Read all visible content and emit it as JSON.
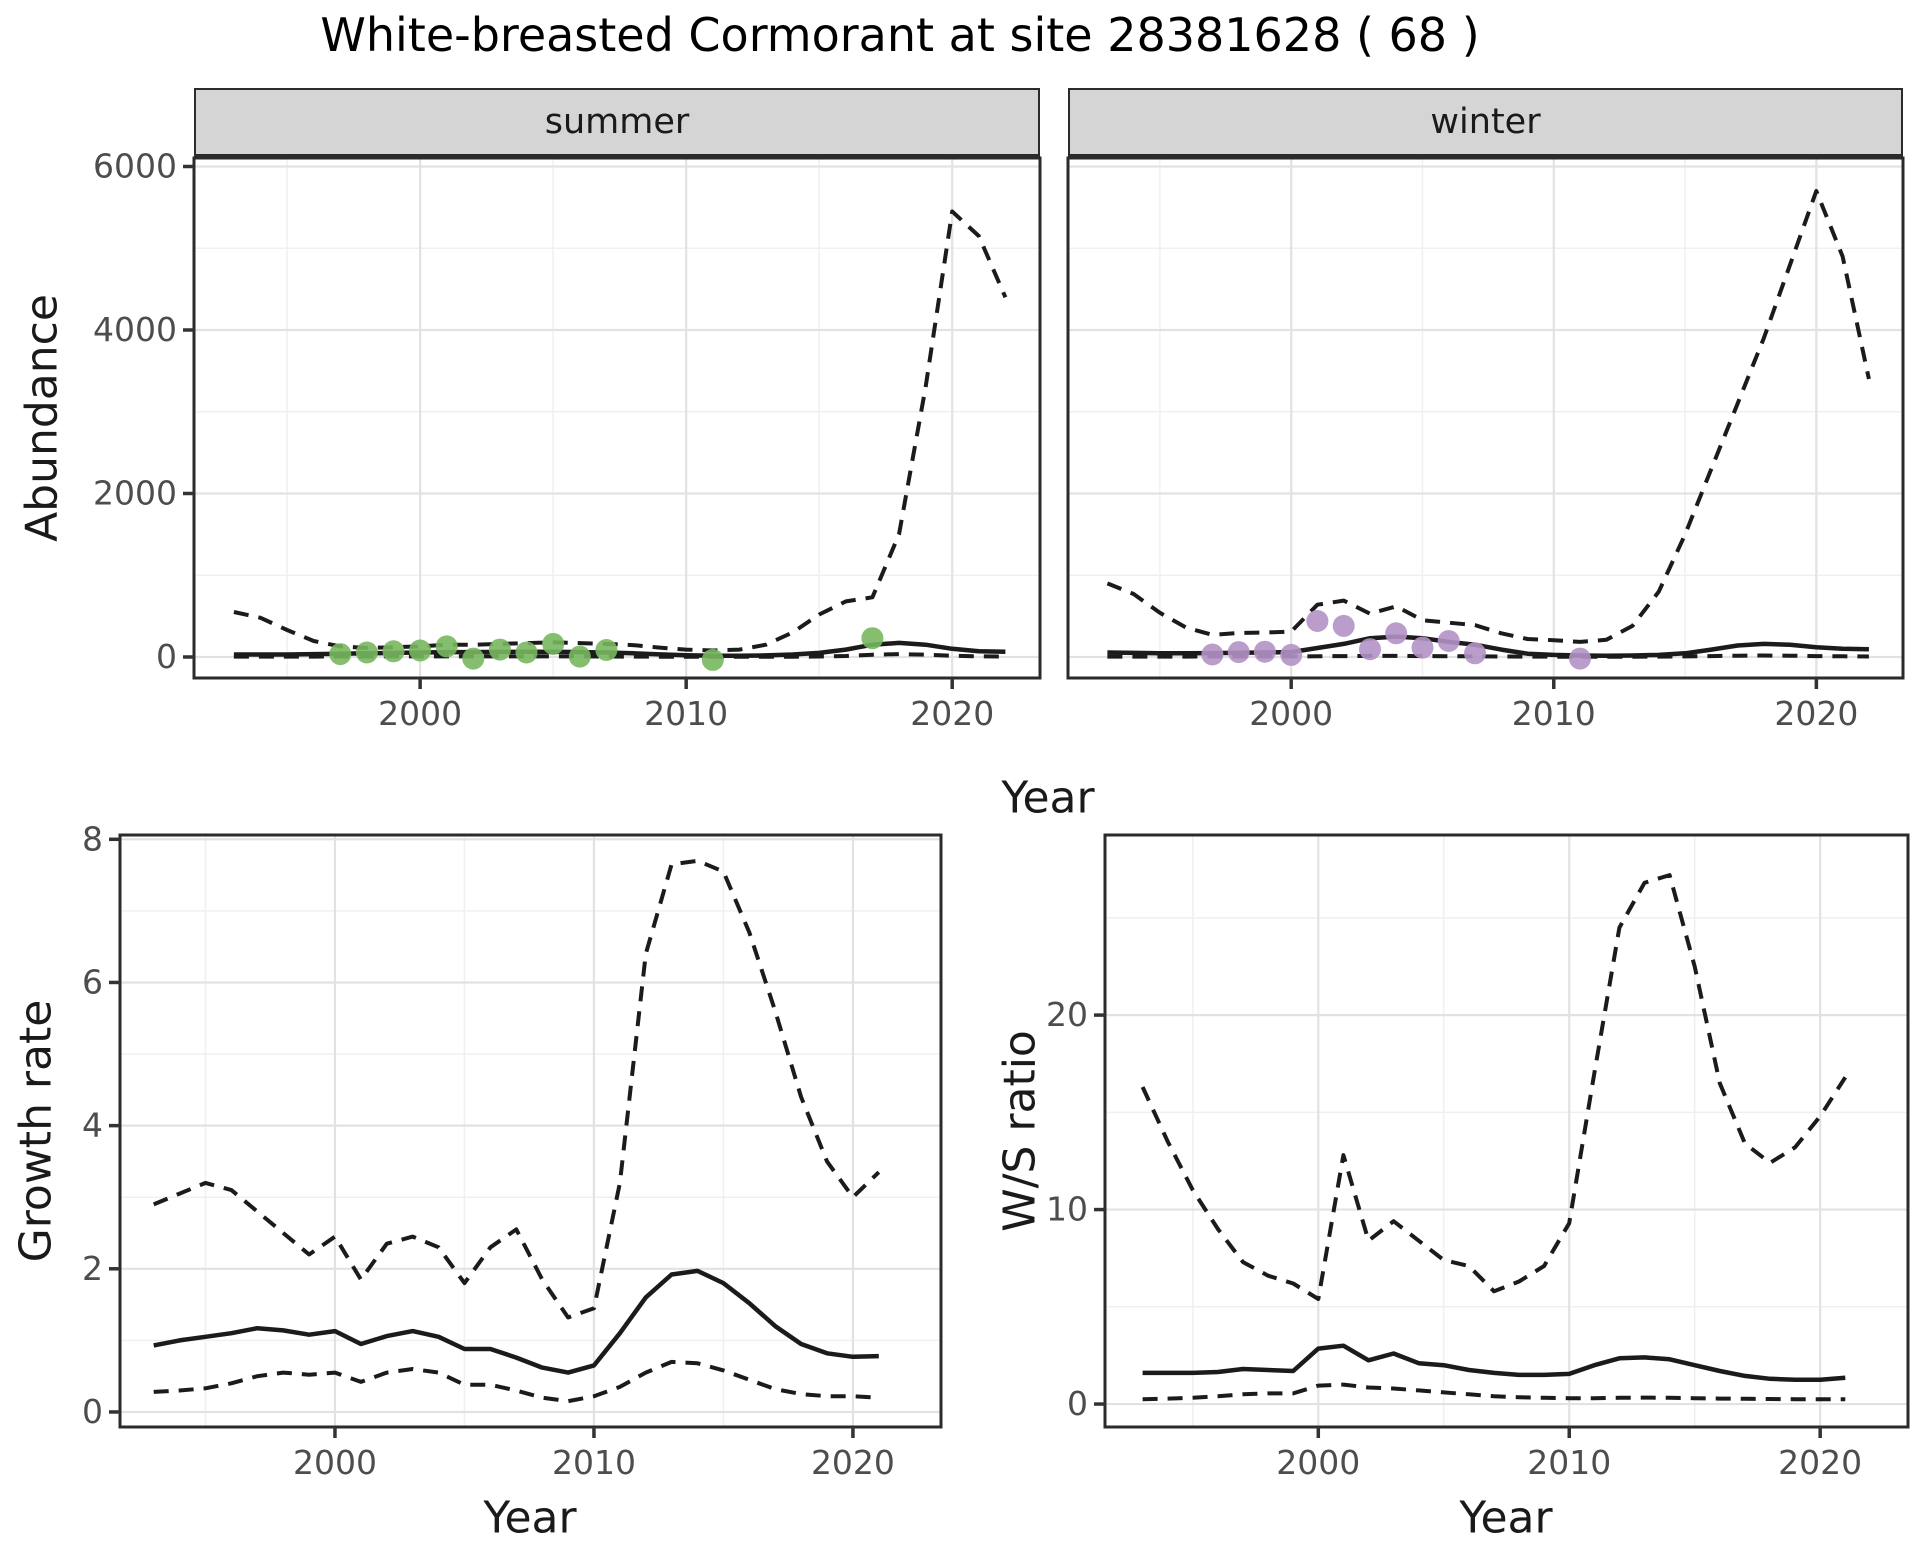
{
  "title": "White-breasted Cormorant at site 28381628 ( 68 )",
  "colors": {
    "line": "#1b1b1b",
    "summer_point": "#78b75e",
    "winter_point": "#b492c6",
    "strip_bg": "#d5d5d5",
    "panel_border": "#2b2b2b",
    "grid_major": "#e2e2e2",
    "grid_minor": "#f0f0f0",
    "tick_text": "#4d4d4d"
  },
  "chart_data": [
    {
      "id": "abundance-summer",
      "type": "line",
      "facet": "summer",
      "ylabel": "Abundance",
      "xlabel": "Year",
      "xlim": [
        1991.5,
        2023.3
      ],
      "ylim": [
        -257,
        6104
      ],
      "x_major": [
        2000,
        2010,
        2020
      ],
      "x_minor": [
        1995,
        2005,
        2015
      ],
      "y_major": [
        0,
        2000,
        4000,
        6000
      ],
      "y_minor": [
        1000,
        3000,
        5000
      ],
      "x_tick_labels": [
        "2000",
        "2010",
        "2020"
      ],
      "y_tick_labels": [
        "0",
        "2000",
        "4000",
        "6000"
      ],
      "years": [
        1993,
        1994,
        1995,
        1996,
        1997,
        1998,
        1999,
        2000,
        2001,
        2002,
        2003,
        2004,
        2005,
        2006,
        2007,
        2008,
        2009,
        2010,
        2011,
        2012,
        2013,
        2014,
        2015,
        2016,
        2017,
        2018,
        2019,
        2020,
        2021,
        2022
      ],
      "series": [
        {
          "name": "mean",
          "style": "solid",
          "values": [
            30,
            30,
            30,
            35,
            40,
            45,
            50,
            55,
            60,
            60,
            62,
            62,
            65,
            60,
            55,
            45,
            32,
            22,
            15,
            15,
            20,
            30,
            50,
            90,
            150,
            172,
            150,
            100,
            70,
            65
          ]
        },
        {
          "name": "upper-ci",
          "style": "dashed",
          "values": [
            550,
            480,
            330,
            195,
            130,
            110,
            120,
            130,
            150,
            150,
            160,
            170,
            180,
            170,
            160,
            145,
            115,
            90,
            80,
            90,
            150,
            300,
            520,
            680,
            730,
            1500,
            3300,
            5450,
            5150,
            4400
          ]
        },
        {
          "name": "lower-ci",
          "style": "dashed",
          "values": [
            5,
            5,
            5,
            5,
            6,
            6,
            7,
            7,
            7,
            7,
            7,
            7,
            7,
            7,
            6,
            5,
            4,
            3,
            3,
            3,
            3,
            4,
            6,
            12,
            28,
            35,
            28,
            14,
            8,
            6
          ]
        }
      ],
      "points": {
        "color": "#78b75e",
        "years": [
          1997,
          1998,
          1999,
          2000,
          2001,
          2002,
          2003,
          2004,
          2005,
          2006,
          2007,
          2011,
          2017
        ],
        "values": [
          35,
          55,
          70,
          80,
          130,
          -20,
          90,
          55,
          160,
          5,
          85,
          -35,
          230
        ]
      }
    },
    {
      "id": "abundance-winter",
      "type": "line",
      "facet": "winter",
      "ylabel": "Abundance",
      "xlabel": "Year",
      "xlim": [
        1991.5,
        2023.3
      ],
      "ylim": [
        -257,
        6104
      ],
      "x_major": [
        2000,
        2010,
        2020
      ],
      "x_minor": [
        1995,
        2005,
        2015
      ],
      "y_major": [
        0,
        2000,
        4000,
        6000
      ],
      "y_minor": [
        1000,
        3000,
        5000
      ],
      "x_tick_labels": [
        "2000",
        "2010",
        "2020"
      ],
      "y_tick_labels": [],
      "years": [
        1993,
        1994,
        1995,
        1996,
        1997,
        1998,
        1999,
        2000,
        2001,
        2002,
        2003,
        2004,
        2005,
        2006,
        2007,
        2008,
        2009,
        2010,
        2011,
        2012,
        2013,
        2014,
        2015,
        2016,
        2017,
        2018,
        2019,
        2020,
        2021,
        2022
      ],
      "series": [
        {
          "name": "mean",
          "style": "solid",
          "values": [
            55,
            50,
            45,
            45,
            48,
            52,
            55,
            60,
            110,
            160,
            230,
            250,
            230,
            185,
            150,
            90,
            40,
            25,
            18,
            15,
            18,
            25,
            45,
            90,
            140,
            160,
            150,
            120,
            100,
            95
          ]
        },
        {
          "name": "upper-ci",
          "style": "dashed",
          "values": [
            900,
            770,
            540,
            360,
            270,
            295,
            300,
            310,
            640,
            690,
            530,
            620,
            450,
            420,
            390,
            290,
            220,
            205,
            185,
            210,
            380,
            800,
            1500,
            2300,
            3100,
            3900,
            4800,
            5700,
            4900,
            3400
          ]
        },
        {
          "name": "lower-ci",
          "style": "dashed",
          "values": [
            5,
            5,
            5,
            5,
            6,
            6,
            7,
            7,
            9,
            11,
            13,
            13,
            11,
            10,
            8,
            6,
            5,
            4,
            3,
            3,
            4,
            5,
            7,
            11,
            16,
            18,
            16,
            11,
            8,
            6
          ]
        }
      ],
      "points": {
        "color": "#b492c6",
        "years": [
          1997,
          1998,
          1999,
          2000,
          2001,
          2002,
          2003,
          2004,
          2005,
          2006,
          2007,
          2011
        ],
        "values": [
          30,
          60,
          65,
          25,
          440,
          380,
          95,
          290,
          115,
          195,
          45,
          -20
        ]
      }
    },
    {
      "id": "growth-rate",
      "type": "line",
      "facet": null,
      "ylabel": "Growth rate",
      "xlabel": "Year",
      "xlim": [
        1991.7,
        2023.4
      ],
      "ylim": [
        -0.21,
        8.06
      ],
      "x_major": [
        2000,
        2010,
        2020
      ],
      "x_minor": [
        1995,
        2005,
        2015
      ],
      "y_major": [
        0,
        2,
        4,
        6,
        8
      ],
      "y_minor": [
        1,
        3,
        5,
        7
      ],
      "x_tick_labels": [
        "2000",
        "2010",
        "2020"
      ],
      "y_tick_labels": [
        "0",
        "2",
        "4",
        "6",
        "8"
      ],
      "years": [
        1993,
        1994,
        1995,
        1996,
        1997,
        1998,
        1999,
        2000,
        2001,
        2002,
        2003,
        2004,
        2005,
        2006,
        2007,
        2008,
        2009,
        2010,
        2011,
        2012,
        2013,
        2014,
        2015,
        2016,
        2017,
        2018,
        2019,
        2020,
        2021
      ],
      "series": [
        {
          "name": "mean",
          "style": "solid",
          "values": [
            0.93,
            1.0,
            1.05,
            1.1,
            1.17,
            1.14,
            1.08,
            1.13,
            0.95,
            1.06,
            1.13,
            1.05,
            0.88,
            0.88,
            0.76,
            0.62,
            0.55,
            0.65,
            1.1,
            1.6,
            1.92,
            1.97,
            1.8,
            1.52,
            1.2,
            0.95,
            0.82,
            0.77,
            0.78
          ]
        },
        {
          "name": "upper-ci",
          "style": "dashed",
          "values": [
            2.9,
            3.05,
            3.2,
            3.1,
            2.8,
            2.5,
            2.2,
            2.45,
            1.85,
            2.35,
            2.45,
            2.3,
            1.8,
            2.3,
            2.55,
            1.85,
            1.32,
            1.45,
            3.2,
            6.4,
            7.65,
            7.7,
            7.55,
            6.7,
            5.6,
            4.4,
            3.5,
            3.0,
            3.35
          ]
        },
        {
          "name": "lower-ci",
          "style": "dashed",
          "values": [
            0.28,
            0.3,
            0.33,
            0.4,
            0.5,
            0.55,
            0.52,
            0.55,
            0.42,
            0.55,
            0.6,
            0.55,
            0.38,
            0.38,
            0.3,
            0.2,
            0.15,
            0.22,
            0.35,
            0.55,
            0.7,
            0.68,
            0.58,
            0.45,
            0.32,
            0.25,
            0.22,
            0.22,
            0.2
          ]
        }
      ],
      "points": null
    },
    {
      "id": "ws-ratio",
      "type": "line",
      "facet": null,
      "ylabel": "W/S ratio",
      "xlabel": "Year",
      "xlim": [
        1991.5,
        2023.5
      ],
      "ylim": [
        -1.18,
        29.26
      ],
      "x_major": [
        2000,
        2010,
        2020
      ],
      "x_minor": [
        1995,
        2005,
        2015
      ],
      "y_major": [
        0,
        10,
        20
      ],
      "y_minor": [
        5,
        15,
        25
      ],
      "x_tick_labels": [
        "2000",
        "2010",
        "2020"
      ],
      "y_tick_labels": [
        "0",
        "10",
        "20"
      ],
      "years": [
        1993,
        1994,
        1995,
        1996,
        1997,
        1998,
        1999,
        2000,
        2001,
        2002,
        2003,
        2004,
        2005,
        2006,
        2007,
        2008,
        2009,
        2010,
        2011,
        2012,
        2013,
        2014,
        2015,
        2016,
        2017,
        2018,
        2019,
        2020,
        2021
      ],
      "series": [
        {
          "name": "mean",
          "style": "solid",
          "values": [
            1.6,
            1.6,
            1.6,
            1.65,
            1.8,
            1.75,
            1.7,
            2.85,
            3.0,
            2.25,
            2.6,
            2.1,
            2.0,
            1.75,
            1.6,
            1.5,
            1.5,
            1.55,
            2.0,
            2.35,
            2.4,
            2.3,
            2.0,
            1.7,
            1.45,
            1.3,
            1.25,
            1.25,
            1.35
          ]
        },
        {
          "name": "upper-ci",
          "style": "dashed",
          "values": [
            16.3,
            13.5,
            11.0,
            9.0,
            7.3,
            6.6,
            6.2,
            5.4,
            12.8,
            8.4,
            9.4,
            8.4,
            7.4,
            7.1,
            5.8,
            6.3,
            7.1,
            9.3,
            17.0,
            24.5,
            26.8,
            27.2,
            22.5,
            16.5,
            13.4,
            12.4,
            13.2,
            14.8,
            16.8
          ]
        },
        {
          "name": "lower-ci",
          "style": "dashed",
          "values": [
            0.25,
            0.28,
            0.32,
            0.4,
            0.5,
            0.55,
            0.55,
            0.95,
            1.0,
            0.85,
            0.8,
            0.7,
            0.6,
            0.5,
            0.4,
            0.35,
            0.32,
            0.3,
            0.3,
            0.32,
            0.33,
            0.32,
            0.3,
            0.28,
            0.27,
            0.26,
            0.25,
            0.25,
            0.25
          ]
        }
      ],
      "points": null
    }
  ]
}
